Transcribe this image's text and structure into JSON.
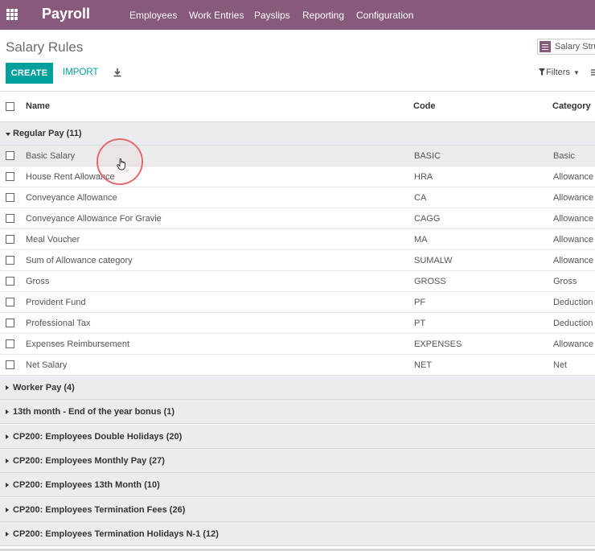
{
  "navbar": {
    "app_name": "Payroll",
    "menu": [
      "Employees",
      "Work Entries",
      "Payslips",
      "Reporting",
      "Configuration"
    ],
    "color": "#875a7b"
  },
  "control_panel": {
    "title": "Salary Rules",
    "search_facet": "Salary Stru",
    "create_label": "CREATE",
    "import_label": "IMPORT",
    "filters_label": "Filters"
  },
  "table": {
    "headers": {
      "name": "Name",
      "code": "Code",
      "category": "Category"
    },
    "open_group": "Regular Pay (11)",
    "rows": [
      {
        "name": "Basic Salary",
        "code": "BASIC",
        "category": "Basic"
      },
      {
        "name": "House Rent Allowance",
        "code": "HRA",
        "category": "Allowance"
      },
      {
        "name": "Conveyance Allowance",
        "code": "CA",
        "category": "Allowance"
      },
      {
        "name": "Conveyance Allowance For Gravie",
        "code": "CAGG",
        "category": "Allowance"
      },
      {
        "name": "Meal Voucher",
        "code": "MA",
        "category": "Allowance"
      },
      {
        "name": "Sum of Allowance category",
        "code": "SUMALW",
        "category": "Allowance"
      },
      {
        "name": "Gross",
        "code": "GROSS",
        "category": "Gross"
      },
      {
        "name": "Provident Fund",
        "code": "PF",
        "category": "Deduction"
      },
      {
        "name": "Professional Tax",
        "code": "PT",
        "category": "Deduction"
      },
      {
        "name": "Expenses Reimbursement",
        "code": "EXPENSES",
        "category": "Allowance"
      },
      {
        "name": "Net Salary",
        "code": "NET",
        "category": "Net"
      }
    ],
    "closed_groups": [
      "Worker Pay (4)",
      "13th month - End of the year bonus (1)",
      "CP200: Employees Double Holidays (20)",
      "CP200: Employees Monthly Pay (27)",
      "CP200: Employees 13th Month (10)",
      "CP200: Employees Termination Fees (26)",
      "CP200: Employees Termination Holidays N-1 (12)"
    ]
  },
  "icons": {
    "apps": "apps-grid-icon",
    "facet": "list-facet-icon",
    "download": "download-icon",
    "filter": "filter-funnel-icon",
    "group_by": "group-by-icon",
    "cursor": "hand-pointer-icon"
  }
}
